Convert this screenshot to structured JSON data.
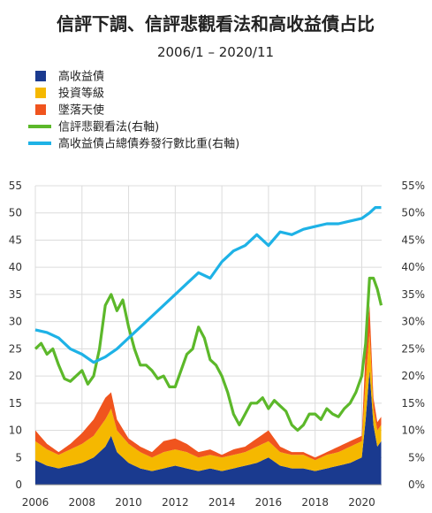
{
  "chart_data": {
    "type": "area",
    "title": "信評下調、信評悲觀看法和高收益債占比",
    "subtitle": "2006/1 – 2020/11",
    "x_range": [
      "2006-01",
      "2020-11"
    ],
    "x_ticks": [
      "2006",
      "2008",
      "2010",
      "2012",
      "2014",
      "2016",
      "2018",
      "2020"
    ],
    "y_left": {
      "min": 0,
      "max": 55,
      "ticks": [
        "0",
        "5",
        "10",
        "15",
        "20",
        "25",
        "30",
        "35",
        "40",
        "45",
        "50",
        "55"
      ]
    },
    "y_right": {
      "min": 0,
      "max": 55,
      "ticks": [
        "0%",
        "5%",
        "10%",
        "15%",
        "20%",
        "25%",
        "30%",
        "35%",
        "40%",
        "45%",
        "50%",
        "55%"
      ]
    },
    "grid": true,
    "legend_position": "top-left",
    "stacked_series": [
      {
        "name": "高收益債",
        "color": "#1a3a8f",
        "axis": "left",
        "points": [
          [
            "2006-01",
            4.5
          ],
          [
            "2006-07",
            3.5
          ],
          [
            "2007-01",
            3
          ],
          [
            "2007-07",
            3.5
          ],
          [
            "2008-01",
            4
          ],
          [
            "2008-07",
            5
          ],
          [
            "2009-01",
            7
          ],
          [
            "2009-04",
            9
          ],
          [
            "2009-07",
            6
          ],
          [
            "2010-01",
            4
          ],
          [
            "2010-07",
            3
          ],
          [
            "2011-01",
            2.5
          ],
          [
            "2011-07",
            3
          ],
          [
            "2012-01",
            3.5
          ],
          [
            "2012-07",
            3
          ],
          [
            "2013-01",
            2.5
          ],
          [
            "2013-07",
            3
          ],
          [
            "2014-01",
            2.5
          ],
          [
            "2014-07",
            3
          ],
          [
            "2015-01",
            3.5
          ],
          [
            "2015-07",
            4
          ],
          [
            "2016-01",
            5
          ],
          [
            "2016-07",
            3.5
          ],
          [
            "2017-01",
            3
          ],
          [
            "2017-07",
            3
          ],
          [
            "2018-01",
            2.5
          ],
          [
            "2018-07",
            3
          ],
          [
            "2019-01",
            3.5
          ],
          [
            "2019-07",
            4
          ],
          [
            "2020-01",
            5
          ],
          [
            "2020-03",
            12
          ],
          [
            "2020-05",
            21
          ],
          [
            "2020-07",
            11
          ],
          [
            "2020-09",
            7
          ],
          [
            "2020-11",
            8
          ]
        ]
      },
      {
        "name": "投資等級",
        "color": "#f5b800",
        "axis": "left",
        "points": [
          [
            "2006-01",
            3.5
          ],
          [
            "2006-07",
            3
          ],
          [
            "2007-01",
            2.5
          ],
          [
            "2007-07",
            3
          ],
          [
            "2008-01",
            3.5
          ],
          [
            "2008-07",
            4
          ],
          [
            "2009-01",
            5
          ],
          [
            "2009-04",
            5
          ],
          [
            "2009-07",
            4
          ],
          [
            "2010-01",
            3.5
          ],
          [
            "2010-07",
            3
          ],
          [
            "2011-01",
            2.5
          ],
          [
            "2011-07",
            3
          ],
          [
            "2012-01",
            3
          ],
          [
            "2012-07",
            3
          ],
          [
            "2013-01",
            2.5
          ],
          [
            "2013-07",
            2.5
          ],
          [
            "2014-01",
            2.5
          ],
          [
            "2014-07",
            2.5
          ],
          [
            "2015-01",
            2.5
          ],
          [
            "2015-07",
            3
          ],
          [
            "2016-01",
            3
          ],
          [
            "2016-07",
            2.5
          ],
          [
            "2017-01",
            2.5
          ],
          [
            "2017-07",
            2.5
          ],
          [
            "2018-01",
            2
          ],
          [
            "2018-07",
            2.5
          ],
          [
            "2019-01",
            2.5
          ],
          [
            "2019-07",
            3
          ],
          [
            "2020-01",
            3
          ],
          [
            "2020-03",
            7
          ],
          [
            "2020-05",
            7
          ],
          [
            "2020-07",
            3
          ],
          [
            "2020-09",
            3
          ],
          [
            "2020-11",
            3
          ]
        ]
      },
      {
        "name": "墜落天使",
        "color": "#f0541e",
        "axis": "left",
        "points": [
          [
            "2006-01",
            2
          ],
          [
            "2006-07",
            1
          ],
          [
            "2007-01",
            0.5
          ],
          [
            "2007-07",
            1
          ],
          [
            "2008-01",
            2
          ],
          [
            "2008-07",
            3
          ],
          [
            "2009-01",
            4
          ],
          [
            "2009-04",
            3
          ],
          [
            "2009-07",
            2
          ],
          [
            "2010-01",
            1
          ],
          [
            "2010-07",
            1
          ],
          [
            "2011-01",
            1
          ],
          [
            "2011-07",
            2
          ],
          [
            "2012-01",
            2
          ],
          [
            "2012-07",
            1.5
          ],
          [
            "2013-01",
            1
          ],
          [
            "2013-07",
            1
          ],
          [
            "2014-01",
            0.5
          ],
          [
            "2014-07",
            1
          ],
          [
            "2015-01",
            1
          ],
          [
            "2015-07",
            1.5
          ],
          [
            "2016-01",
            2
          ],
          [
            "2016-07",
            1
          ],
          [
            "2017-01",
            0.5
          ],
          [
            "2017-07",
            0.5
          ],
          [
            "2018-01",
            0.5
          ],
          [
            "2018-07",
            0.5
          ],
          [
            "2019-01",
            1
          ],
          [
            "2019-07",
            1
          ],
          [
            "2020-01",
            1
          ],
          [
            "2020-03",
            6
          ],
          [
            "2020-05",
            5
          ],
          [
            "2020-07",
            2
          ],
          [
            "2020-09",
            1.5
          ],
          [
            "2020-11",
            1.5
          ]
        ]
      }
    ],
    "line_series": [
      {
        "name": "信評悲觀看法(右軸)",
        "color": "#5cb82a",
        "axis": "right",
        "points": [
          [
            "2006-01",
            25
          ],
          [
            "2006-04",
            26
          ],
          [
            "2006-07",
            24
          ],
          [
            "2006-10",
            25
          ],
          [
            "2007-01",
            22
          ],
          [
            "2007-04",
            19.5
          ],
          [
            "2007-07",
            19
          ],
          [
            "2007-10",
            20
          ],
          [
            "2008-01",
            21
          ],
          [
            "2008-04",
            18.5
          ],
          [
            "2008-07",
            20
          ],
          [
            "2008-10",
            25
          ],
          [
            "2009-01",
            33
          ],
          [
            "2009-04",
            35
          ],
          [
            "2009-07",
            32
          ],
          [
            "2009-10",
            34
          ],
          [
            "2010-01",
            29
          ],
          [
            "2010-04",
            25
          ],
          [
            "2010-07",
            22
          ],
          [
            "2010-10",
            22
          ],
          [
            "2011-01",
            21
          ],
          [
            "2011-04",
            19.5
          ],
          [
            "2011-07",
            20
          ],
          [
            "2011-10",
            18
          ],
          [
            "2012-01",
            18
          ],
          [
            "2012-04",
            21
          ],
          [
            "2012-07",
            24
          ],
          [
            "2012-10",
            25
          ],
          [
            "2013-01",
            29
          ],
          [
            "2013-04",
            27
          ],
          [
            "2013-07",
            23
          ],
          [
            "2013-10",
            22
          ],
          [
            "2014-01",
            20
          ],
          [
            "2014-04",
            17
          ],
          [
            "2014-07",
            13
          ],
          [
            "2014-10",
            11
          ],
          [
            "2015-01",
            13
          ],
          [
            "2015-04",
            15
          ],
          [
            "2015-07",
            15
          ],
          [
            "2015-10",
            16
          ],
          [
            "2016-01",
            14
          ],
          [
            "2016-04",
            15.5
          ],
          [
            "2016-07",
            14.5
          ],
          [
            "2016-10",
            13.5
          ],
          [
            "2017-01",
            11
          ],
          [
            "2017-04",
            10
          ],
          [
            "2017-07",
            11
          ],
          [
            "2017-10",
            13
          ],
          [
            "2018-01",
            13
          ],
          [
            "2018-04",
            12
          ],
          [
            "2018-07",
            14
          ],
          [
            "2018-10",
            13
          ],
          [
            "2019-01",
            12.5
          ],
          [
            "2019-04",
            14
          ],
          [
            "2019-07",
            15
          ],
          [
            "2019-10",
            17
          ],
          [
            "2020-01",
            20
          ],
          [
            "2020-03",
            26
          ],
          [
            "2020-05",
            38
          ],
          [
            "2020-07",
            38
          ],
          [
            "2020-09",
            36
          ],
          [
            "2020-11",
            33
          ]
        ]
      },
      {
        "name": "高收益債占總債券發行數比重(右軸)",
        "color": "#1eb2e6",
        "axis": "right",
        "points": [
          [
            "2006-01",
            28.5
          ],
          [
            "2006-07",
            28
          ],
          [
            "2007-01",
            27
          ],
          [
            "2007-07",
            25
          ],
          [
            "2008-01",
            24
          ],
          [
            "2008-07",
            22.5
          ],
          [
            "2009-01",
            23.5
          ],
          [
            "2009-07",
            25
          ],
          [
            "2010-01",
            27
          ],
          [
            "2010-07",
            29
          ],
          [
            "2011-01",
            31
          ],
          [
            "2011-07",
            33
          ],
          [
            "2012-01",
            35
          ],
          [
            "2012-07",
            37
          ],
          [
            "2013-01",
            39
          ],
          [
            "2013-07",
            38
          ],
          [
            "2014-01",
            41
          ],
          [
            "2014-07",
            43
          ],
          [
            "2015-01",
            44
          ],
          [
            "2015-07",
            46
          ],
          [
            "2016-01",
            44
          ],
          [
            "2016-07",
            46.5
          ],
          [
            "2017-01",
            46
          ],
          [
            "2017-07",
            47
          ],
          [
            "2018-01",
            47.5
          ],
          [
            "2018-07",
            48
          ],
          [
            "2019-01",
            48
          ],
          [
            "2019-07",
            48.5
          ],
          [
            "2020-01",
            49
          ],
          [
            "2020-05",
            50
          ],
          [
            "2020-08",
            51
          ],
          [
            "2020-11",
            51
          ]
        ]
      }
    ]
  }
}
